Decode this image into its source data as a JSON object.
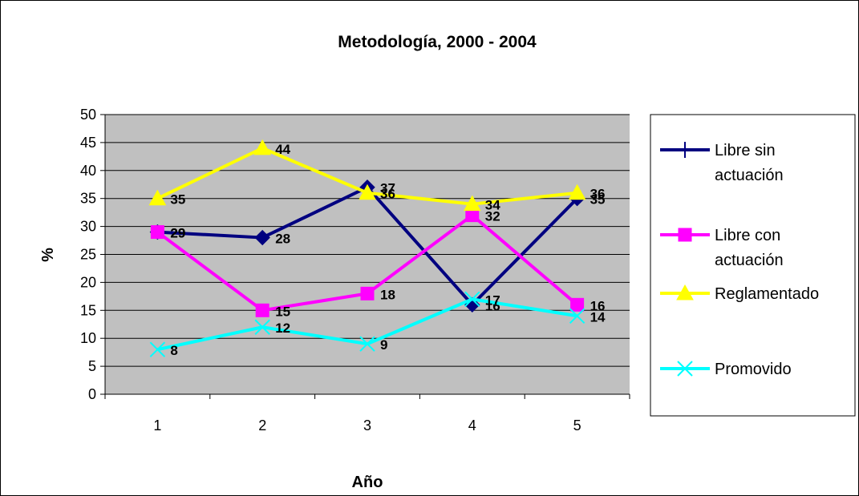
{
  "chart_data": {
    "type": "line",
    "title": "Metodología, 2000 - 2004",
    "xlabel": "Año",
    "ylabel": "%",
    "x": [
      1,
      2,
      3,
      4,
      5
    ],
    "ylim": [
      0,
      50
    ],
    "yticks": [
      0,
      5,
      10,
      15,
      20,
      25,
      30,
      35,
      40,
      45,
      50
    ],
    "grid": true,
    "legend_position": "right",
    "series": [
      {
        "name": "Libre sin actuación",
        "legend_lines": [
          "Libre sin",
          "actuación"
        ],
        "values": [
          29,
          28,
          37,
          16,
          35
        ],
        "color": "#000080",
        "marker": "diamond",
        "legend_marker": "plus"
      },
      {
        "name": "Libre con actuación",
        "legend_lines": [
          "Libre con",
          "actuación"
        ],
        "values": [
          29,
          15,
          18,
          32,
          16
        ],
        "color": "#FF00FF",
        "marker": "square",
        "legend_marker": "square"
      },
      {
        "name": "Reglamentado",
        "legend_lines": [
          "Reglamentado"
        ],
        "values": [
          35,
          44,
          36,
          34,
          36
        ],
        "color": "#FFFF00",
        "marker": "triangle",
        "legend_marker": "triangle"
      },
      {
        "name": "Promovido",
        "legend_lines": [
          "Promovido"
        ],
        "values": [
          8,
          12,
          9,
          17,
          14
        ],
        "color": "#00FFFF",
        "marker": "x",
        "legend_marker": "x"
      }
    ],
    "plot_background": "#C0C0C0",
    "gridline_color": "#000000"
  }
}
